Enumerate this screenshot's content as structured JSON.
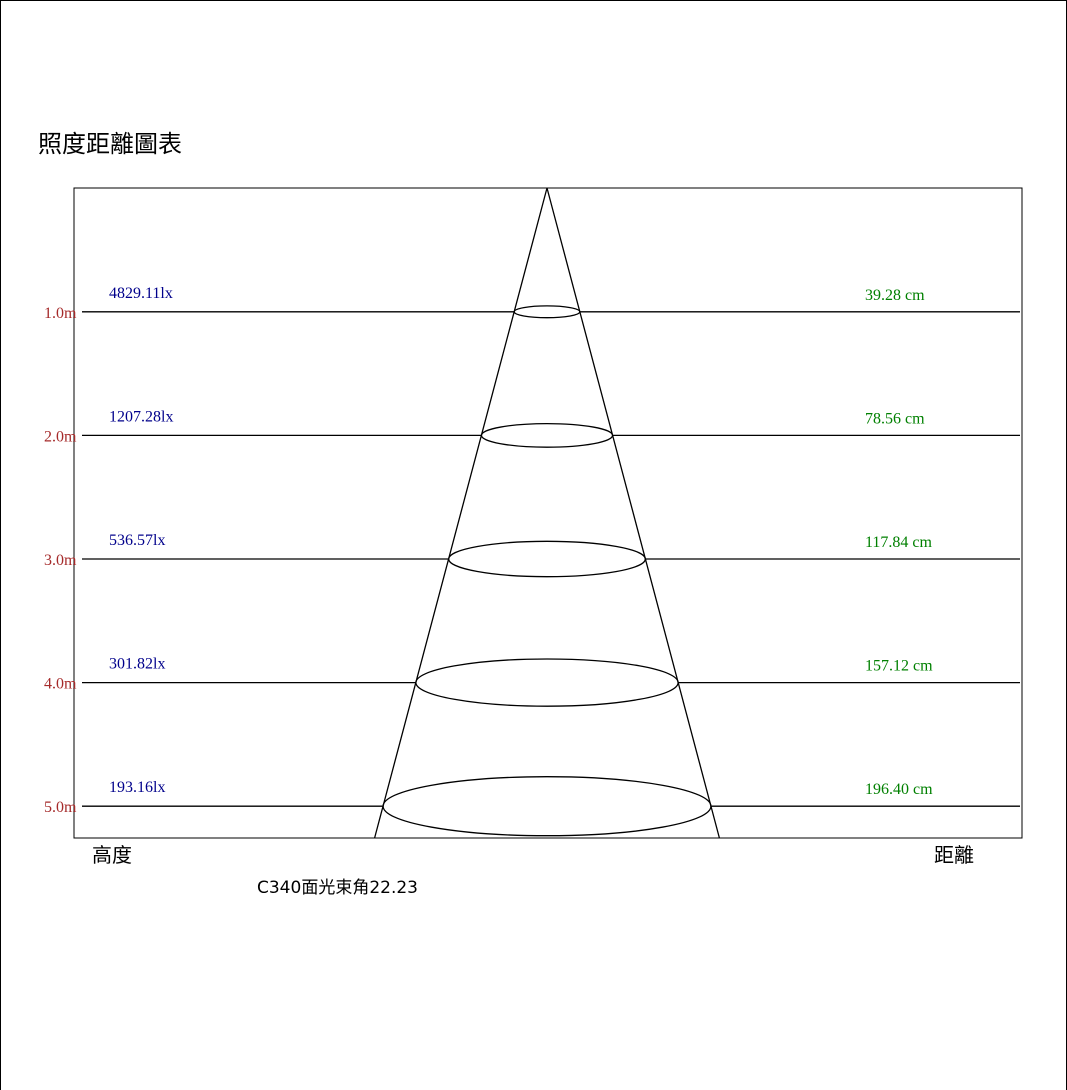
{
  "title": "照度距離圖表",
  "chart_data": {
    "type": "diagram",
    "title": "照度距離圖表",
    "ylabel": "高度",
    "xlabel": "距離",
    "caption": "C340面光束角22.23",
    "beam_angle": 22.23,
    "rows": [
      {
        "height_label": "1.0m",
        "height": 1.0,
        "lux_label": "4829.11lx",
        "lux": 4829.11,
        "diameter_label": "39.28 cm",
        "diameter_cm": 39.28
      },
      {
        "height_label": "2.0m",
        "height": 2.0,
        "lux_label": "1207.28lx",
        "lux": 1207.28,
        "diameter_label": "78.56 cm",
        "diameter_cm": 78.56
      },
      {
        "height_label": "3.0m",
        "height": 3.0,
        "lux_label": "536.57lx",
        "lux": 536.57,
        "diameter_label": "117.84 cm",
        "diameter_cm": 117.84
      },
      {
        "height_label": "4.0m",
        "height": 4.0,
        "lux_label": "301.82lx",
        "lux": 301.82,
        "diameter_label": "157.12 cm",
        "diameter_cm": 157.12
      },
      {
        "height_label": "5.0m",
        "height": 5.0,
        "lux_label": "193.16lx",
        "lux": 193.16,
        "diameter_label": "196.40 cm",
        "diameter_cm": 196.4
      }
    ],
    "colors": {
      "height_label": "#a52a2a",
      "lux_label": "#00008b",
      "diameter_label": "#008000",
      "lines": "#000000"
    }
  }
}
